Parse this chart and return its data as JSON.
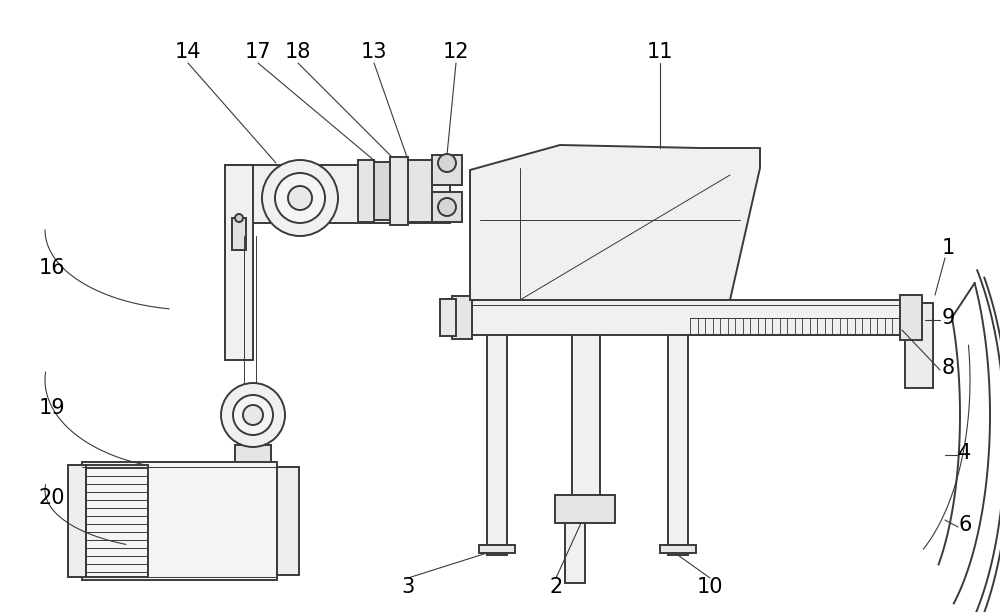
{
  "bg_color": "#ffffff",
  "line_color": "#3a3a3a",
  "line_width": 1.4,
  "thin_line": 0.7,
  "font_size": 15
}
